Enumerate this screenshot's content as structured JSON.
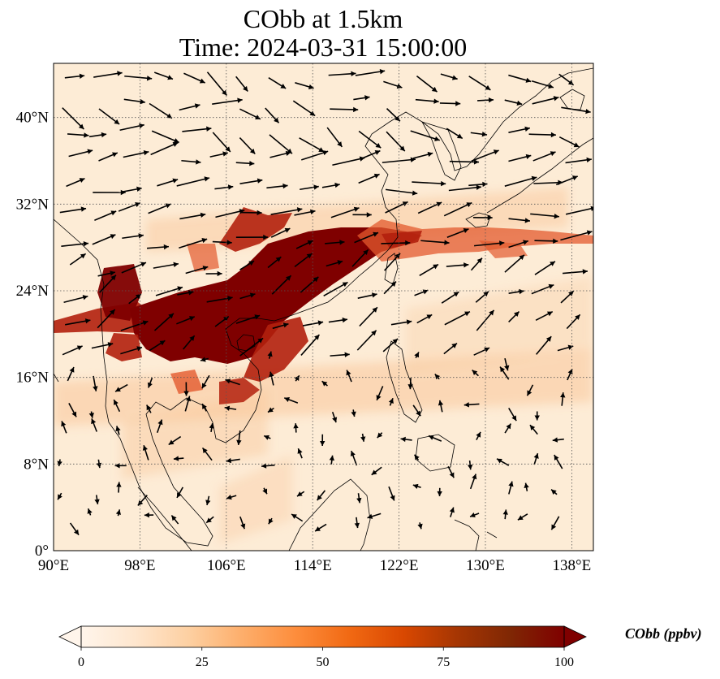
{
  "title": {
    "line1": "CObb at 1.5km",
    "line2": "Time: 2024-03-31 15:00:00"
  },
  "map": {
    "lon_range": [
      90,
      140
    ],
    "lat_range": [
      0,
      45
    ],
    "x_ticks": [
      {
        "value": 90,
        "label": "90°E"
      },
      {
        "value": 98,
        "label": "98°E"
      },
      {
        "value": 106,
        "label": "106°E"
      },
      {
        "value": 114,
        "label": "114°E"
      },
      {
        "value": 122,
        "label": "122°E"
      },
      {
        "value": 130,
        "label": "130°E"
      },
      {
        "value": 138,
        "label": "138°E"
      }
    ],
    "y_ticks": [
      {
        "value": 0,
        "label": "0°"
      },
      {
        "value": 8,
        "label": "8°N"
      },
      {
        "value": 16,
        "label": "16°N"
      },
      {
        "value": 24,
        "label": "24°N"
      },
      {
        "value": 32,
        "label": "32°N"
      },
      {
        "value": 40,
        "label": "40°N"
      }
    ],
    "gridlines": true
  },
  "colorbar": {
    "label": "CObb (ppbv)",
    "min": 0,
    "max": 100,
    "extend": "both",
    "ticks": [
      {
        "value": 0,
        "label": "0"
      },
      {
        "value": 25,
        "label": "25"
      },
      {
        "value": 50,
        "label": "50"
      },
      {
        "value": 75,
        "label": "75"
      },
      {
        "value": 100,
        "label": "100"
      }
    ],
    "colormap": [
      "#fff5eb",
      "#fee6ce",
      "#fdd0a2",
      "#fdae6b",
      "#fd8d3c",
      "#f16913",
      "#d94801",
      "#a63603",
      "#7f2704",
      "#7f0000"
    ]
  },
  "plume": {
    "color_high": "#7f0000",
    "color_mid": "#b3200d",
    "color_low": "#e35a2e",
    "color_faint": "#f9c79b"
  }
}
